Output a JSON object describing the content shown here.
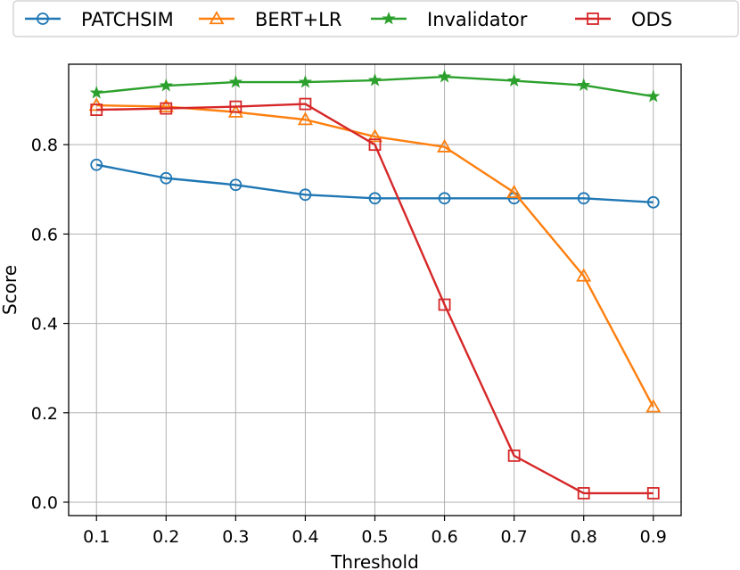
{
  "chart_data": {
    "type": "line",
    "title": "",
    "xlabel": "Threshold",
    "ylabel": "Score",
    "x": [
      0.1,
      0.2,
      0.3,
      0.4,
      0.5,
      0.6,
      0.7,
      0.8,
      0.9
    ],
    "x_tick_labels": [
      "0.1",
      "0.2",
      "0.3",
      "0.4",
      "0.5",
      "0.6",
      "0.7",
      "0.8",
      "0.9"
    ],
    "y_ticks": [
      0.0,
      0.2,
      0.4,
      0.6,
      0.8
    ],
    "y_tick_labels": [
      "0.0",
      "0.2",
      "0.4",
      "0.6",
      "0.8"
    ],
    "xlim": [
      0.06,
      0.94
    ],
    "ylim": [
      -0.03,
      0.98
    ],
    "grid": true,
    "legend_position": "top, outside plot",
    "series": [
      {
        "name": "PATCHSIM",
        "color": "#1f77b4",
        "marker": "circle",
        "values": [
          0.755,
          0.725,
          0.71,
          0.688,
          0.68,
          0.68,
          0.68,
          0.68,
          0.671
        ]
      },
      {
        "name": "BERT+LR",
        "color": "#ff7f0e",
        "marker": "triangle",
        "values": [
          0.888,
          0.885,
          0.873,
          0.856,
          0.818,
          0.795,
          0.693,
          0.506,
          0.213
        ]
      },
      {
        "name": "Invalidator",
        "color": "#2ca02c",
        "marker": "star",
        "values": [
          0.916,
          0.932,
          0.94,
          0.94,
          0.944,
          0.952,
          0.943,
          0.933,
          0.908
        ]
      },
      {
        "name": "ODS",
        "color": "#d62728",
        "marker": "square",
        "values": [
          0.878,
          0.881,
          0.885,
          0.891,
          0.8,
          0.442,
          0.104,
          0.02,
          0.02
        ]
      }
    ]
  }
}
